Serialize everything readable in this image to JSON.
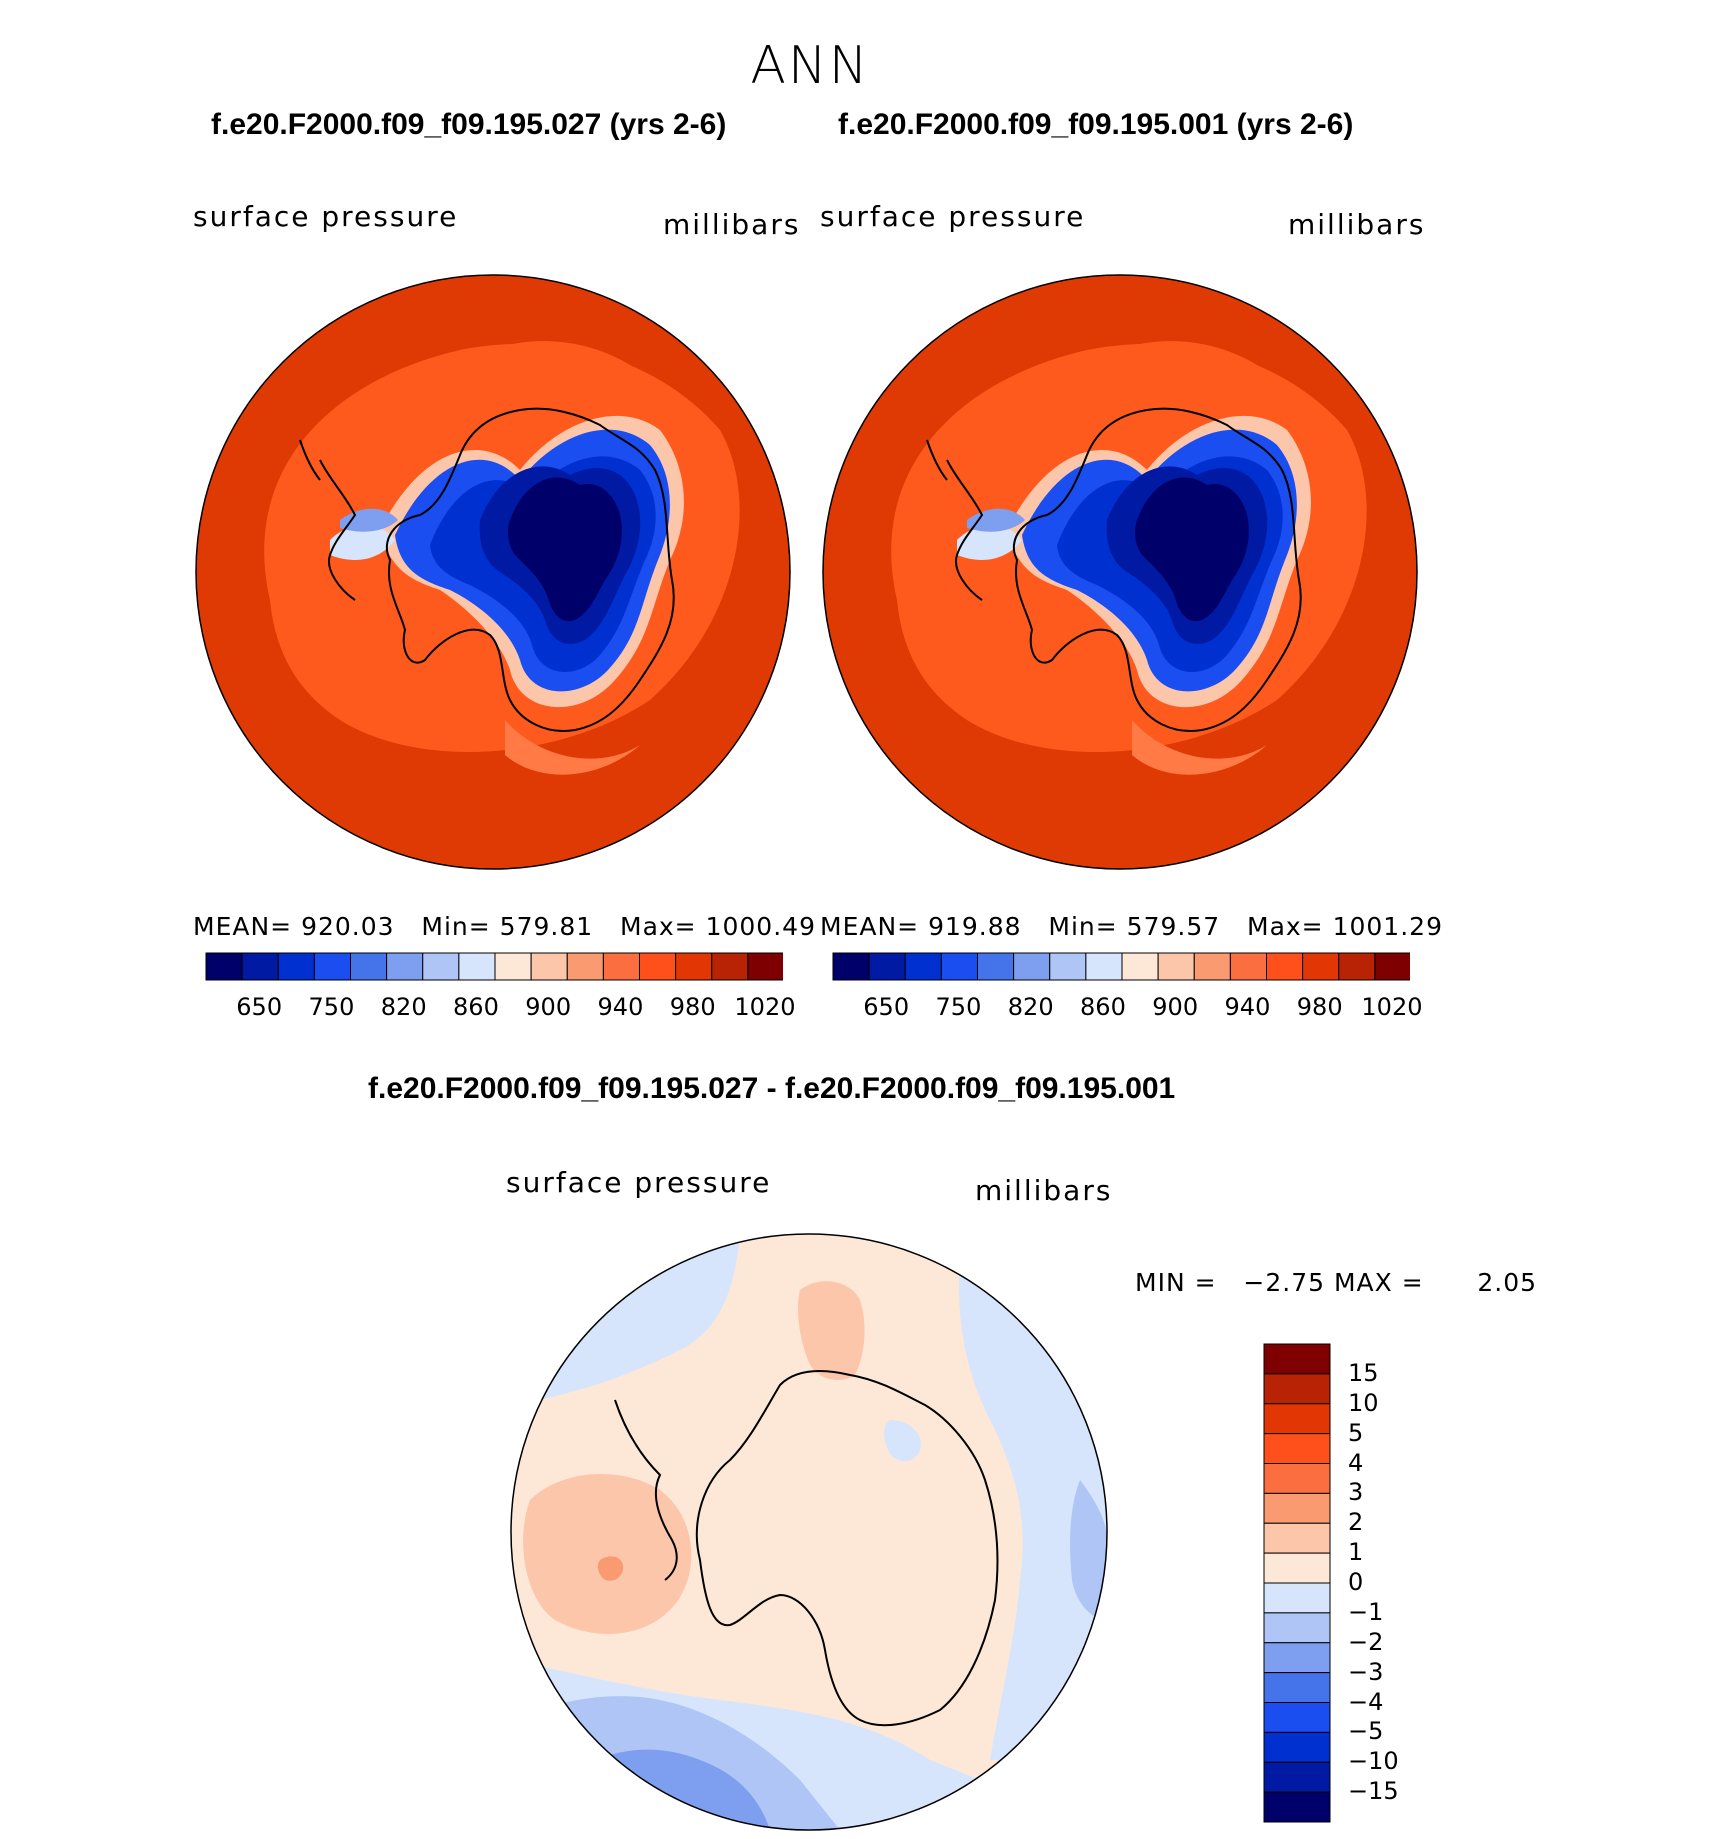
{
  "season": "ANN",
  "colors": {
    "dark_orange": "#e03a04",
    "mid_orange": "#ff5a1e",
    "light_orange": "#ff7a45",
    "coast": "#000000"
  },
  "panels": [
    {
      "case_title": "f.e20.F2000.f09_f09.195.027 (yrs 2-6)",
      "field_name": "surface pressure",
      "units": "millibars",
      "mean_label": "MEAN=",
      "mean": "920.03",
      "min_label": "Min=",
      "min": "579.81",
      "max_label": "Max=",
      "max": "1000.49"
    },
    {
      "case_title": "f.e20.F2000.f09_f09.195.001 (yrs 2-6)",
      "field_name": "surface pressure",
      "units": "millibars",
      "mean_label": "MEAN=",
      "mean": "919.88",
      "min_label": "Min=",
      "min": "579.57",
      "max_label": "Max=",
      "max": "1001.29"
    }
  ],
  "main_colorbar": {
    "colors": [
      "#00006b",
      "#001aa3",
      "#0030d0",
      "#1a4ef0",
      "#4473ea",
      "#7e9ff0",
      "#aec5f6",
      "#d6e5fb",
      "#fde8d8",
      "#fcc6aa",
      "#fa9a70",
      "#fb6e3f",
      "#ff4f1a",
      "#e23604",
      "#b82305",
      "#7e0000"
    ],
    "tick_labels": [
      "650",
      "750",
      "820",
      "860",
      "900",
      "940",
      "980",
      "1020"
    ]
  },
  "diff": {
    "title": "f.e20.F2000.f09_f09.195.027 - f.e20.F2000.f09_f09.195.001",
    "field_name": "surface pressure",
    "units": "millibars",
    "min_label": "MIN =",
    "min": "−2.75",
    "max_label": "MAX =",
    "max": "2.05",
    "colorbar": {
      "colors": [
        "#7e0000",
        "#b82305",
        "#e23604",
        "#ff4f1a",
        "#fb6e3f",
        "#fa9a70",
        "#fcc6aa",
        "#fde8d8",
        "#d6e5fb",
        "#aec5f6",
        "#7e9ff0",
        "#4473ea",
        "#1a4ef0",
        "#0030d0",
        "#001aa3",
        "#00006b"
      ],
      "tick_labels": [
        "15",
        "10",
        "5",
        "4",
        "3",
        "2",
        "1",
        "0",
        "−1",
        "−2",
        "−3",
        "−4",
        "−5",
        "−10",
        "−15"
      ]
    }
  }
}
